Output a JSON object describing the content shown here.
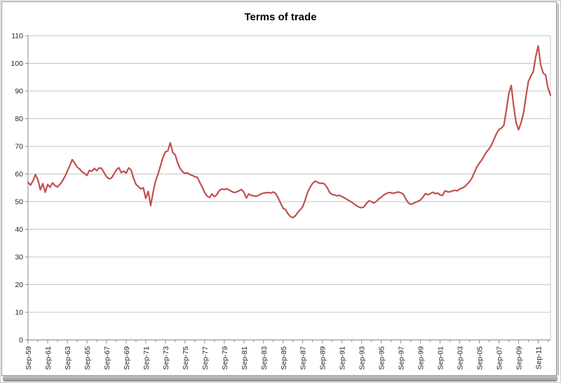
{
  "chart_data": {
    "type": "line",
    "title": "Terms of trade",
    "xlabel": "",
    "ylabel": "",
    "ylim": [
      0,
      110
    ],
    "ytick_step": 10,
    "grid": true,
    "legend": "none",
    "x_unit": "quarterly",
    "x_start": "Sep-59",
    "x_end": "Dec-12",
    "x_tick_labels": [
      "Sep-59",
      "Sep-61",
      "Sep-63",
      "Sep-65",
      "Sep-67",
      "Sep-69",
      "Sep-71",
      "Sep-73",
      "Sep-75",
      "Sep-77",
      "Sep-79",
      "Sep-81",
      "Sep-83",
      "Sep-85",
      "Sep-87",
      "Sep-89",
      "Sep-91",
      "Sep-93",
      "Sep-95",
      "Sep-97",
      "Sep-99",
      "Sep-01",
      "Sep-03",
      "Sep-05",
      "Sep-07",
      "Sep-09",
      "Sep-11"
    ],
    "label_every_n_points": 8,
    "minor_tick_every_n_points": 4,
    "values": [
      57.0,
      56.0,
      57.5,
      59.8,
      58.0,
      54.3,
      56.5,
      53.4,
      56.2,
      55.2,
      56.8,
      55.8,
      55.3,
      56.2,
      57.5,
      59.0,
      61.0,
      63.0,
      65.2,
      64.0,
      62.5,
      61.8,
      60.8,
      60.2,
      59.5,
      61.3,
      61.0,
      62.0,
      61.2,
      62.2,
      62.0,
      60.5,
      59.0,
      58.3,
      58.5,
      60.0,
      61.5,
      62.3,
      60.5,
      61.0,
      60.3,
      62.2,
      61.5,
      58.5,
      56.3,
      55.4,
      54.6,
      55.0,
      51.2,
      53.7,
      48.6,
      53.5,
      57.5,
      60.0,
      63.0,
      66.0,
      68.0,
      68.4,
      71.3,
      67.8,
      66.9,
      64.0,
      62.0,
      60.8,
      60.2,
      60.4,
      59.8,
      59.5,
      59.0,
      58.8,
      57.0,
      55.3,
      53.3,
      52.0,
      51.5,
      52.8,
      51.8,
      52.6,
      54.0,
      54.6,
      54.3,
      54.7,
      54.2,
      53.7,
      53.3,
      53.5,
      53.9,
      54.4,
      53.4,
      51.3,
      52.8,
      52.3,
      52.1,
      51.9,
      52.3,
      52.8,
      53.1,
      53.2,
      53.3,
      53.1,
      53.5,
      52.9,
      51.3,
      49.4,
      47.6,
      47.1,
      45.6,
      44.6,
      44.2,
      44.9,
      46.1,
      47.1,
      48.2,
      50.6,
      53.4,
      55.2,
      56.6,
      57.4,
      57.0,
      56.6,
      56.7,
      56.3,
      55.0,
      53.3,
      52.6,
      52.4,
      52.1,
      52.3,
      51.8,
      51.4,
      50.8,
      50.3,
      49.8,
      49.1,
      48.5,
      48.0,
      47.8,
      48.1,
      49.4,
      50.3,
      50.0,
      49.5,
      50.1,
      51.0,
      51.6,
      52.4,
      52.9,
      53.3,
      53.2,
      53.0,
      53.3,
      53.5,
      53.2,
      52.7,
      51.0,
      49.6,
      49.0,
      49.3,
      49.8,
      50.1,
      50.6,
      51.6,
      52.9,
      52.5,
      52.9,
      53.4,
      52.9,
      53.1,
      52.4,
      52.3,
      53.9,
      53.6,
      53.5,
      53.9,
      54.1,
      53.9,
      54.6,
      54.9,
      55.4,
      56.3,
      57.2,
      58.6,
      60.6,
      62.6,
      63.9,
      65.1,
      66.6,
      68.1,
      69.1,
      70.6,
      72.6,
      74.6,
      76.1,
      76.6,
      77.6,
      83.0,
      89.0,
      92.0,
      84.5,
      78.5,
      76.0,
      78.5,
      82.0,
      88.0,
      93.5,
      95.5,
      97.0,
      102.5,
      106.3,
      99.5,
      96.5,
      95.8,
      91.0,
      88.5
    ],
    "colors": {
      "series_line": "#C0504D",
      "gridline": "#c6c6c6",
      "axis_line": "#898989",
      "tick_label_text": "#262626",
      "title_text": "#000000"
    }
  }
}
